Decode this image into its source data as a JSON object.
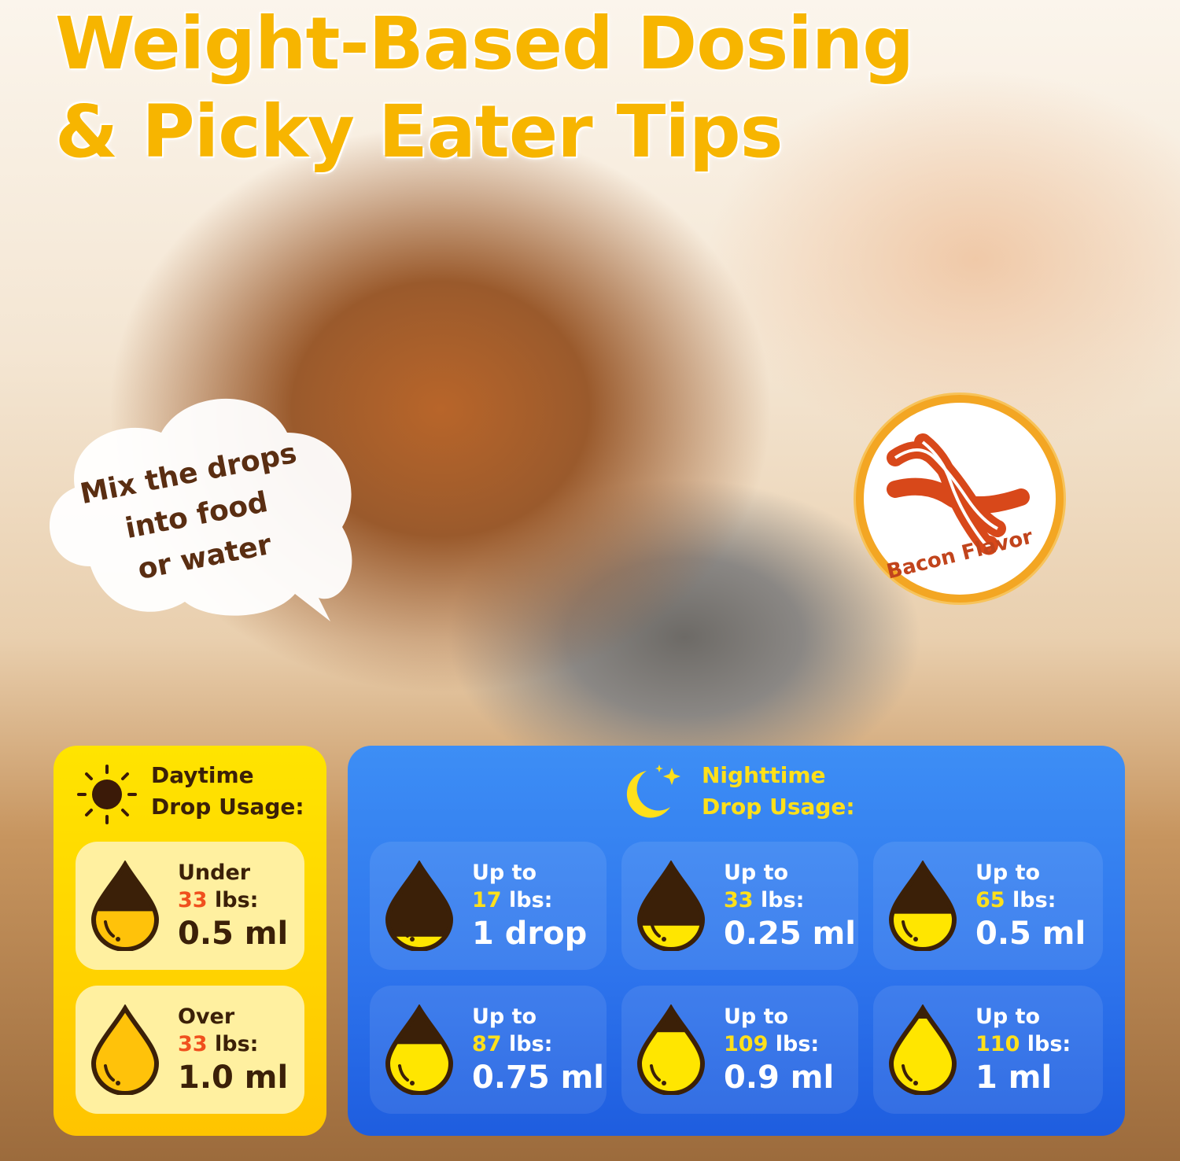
{
  "title": {
    "line1": "Weight-Based Dosing",
    "line2": "& Picky Eater Tips"
  },
  "speech_bubble": {
    "lines": [
      "Mix the drops",
      "into food",
      "or water"
    ]
  },
  "badge": {
    "label": "Bacon Flavor",
    "icon": "bacon-icon",
    "ring_color": "#f3a623",
    "icon_color": "#d8481a"
  },
  "colors": {
    "title": "#f7b500",
    "day_panel": "#ffd800",
    "night_panel": "#2d73ec",
    "drop_outline": "#3b2008",
    "day_fill": "#ffc20a",
    "night_fill": "#ffe600"
  },
  "daytime": {
    "icon": "sun-icon",
    "heading1": "Daytime",
    "heading2": "Drop Usage:",
    "items": [
      {
        "prefix": "Under",
        "weight": "33",
        "unit": "lbs:",
        "dose": "0.5 ml",
        "fill": 0.45
      },
      {
        "prefix": "Over",
        "weight": "33",
        "unit": "lbs:",
        "dose": "1.0 ml",
        "fill": 1.0
      }
    ]
  },
  "nighttime": {
    "icon": "moon-stars-icon",
    "heading1": "Nighttime",
    "heading2": "Drop Usage:",
    "items": [
      {
        "prefix": "Up to",
        "weight": "17",
        "unit": "lbs:",
        "dose": "1 drop",
        "fill": 0.15
      },
      {
        "prefix": "Up to",
        "weight": "33",
        "unit": "lbs:",
        "dose": "0.25 ml",
        "fill": 0.28
      },
      {
        "prefix": "Up to",
        "weight": "65",
        "unit": "lbs:",
        "dose": "0.5 ml",
        "fill": 0.42
      },
      {
        "prefix": "Up to",
        "weight": "87",
        "unit": "lbs:",
        "dose": "0.75 ml",
        "fill": 0.58
      },
      {
        "prefix": "Up to",
        "weight": "109",
        "unit": "lbs:",
        "dose": "0.9 ml",
        "fill": 0.72
      },
      {
        "prefix": "Up to",
        "weight": "110",
        "unit": "lbs:",
        "dose": "1 ml",
        "fill": 0.88
      }
    ]
  }
}
